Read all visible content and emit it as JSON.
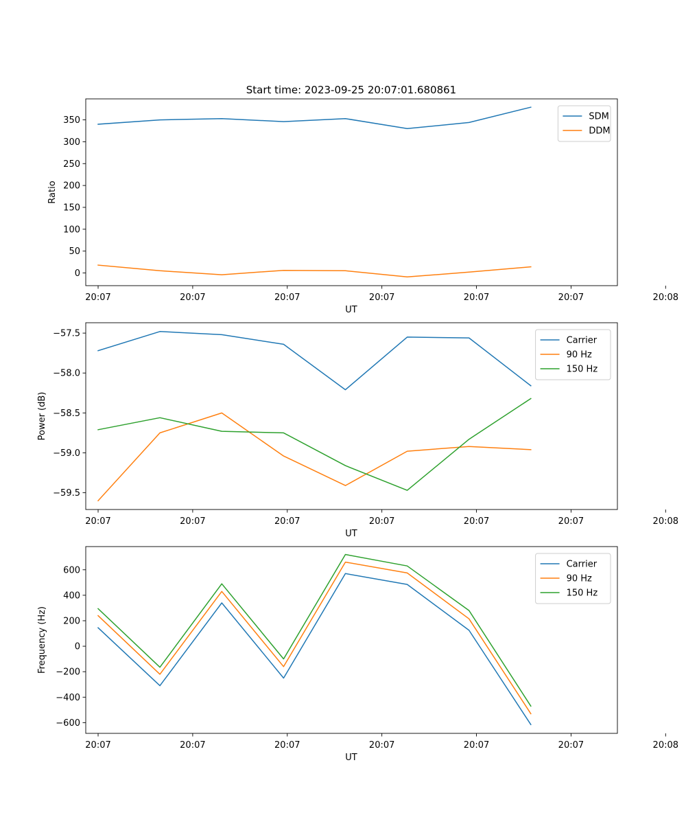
{
  "figure": {
    "title": "Start time: 2023-09-25 20:07:01.680861"
  },
  "colors": {
    "blue": "#1f77b4",
    "orange": "#ff7f0e",
    "green": "#2ca02c",
    "axes": "#000000",
    "legend_border": "#cccccc"
  },
  "chart_data": [
    {
      "type": "line",
      "title": "Start time: 2023-09-25 20:07:01.680861",
      "xlabel": "UT",
      "ylabel": "Ratio",
      "x": [
        1,
        2,
        3,
        4,
        5,
        6,
        7,
        8
      ],
      "xlim": [
        0.8,
        9.4
      ],
      "x_ticks": [
        1,
        2.53,
        4.06,
        5.59,
        7.12,
        8.65,
        10.18
      ],
      "x_tick_labels": [
        "20:07",
        "20:07",
        "20:07",
        "20:07",
        "20:07",
        "20:07",
        "20:08"
      ],
      "ylim": [
        -29,
        398
      ],
      "y_ticks": [
        0,
        50,
        100,
        150,
        200,
        250,
        300,
        350
      ],
      "y_tick_labels": [
        "0",
        "50",
        "100",
        "150",
        "200",
        "250",
        "300",
        "350"
      ],
      "legend_position": "top-right",
      "series": [
        {
          "name": "SDM",
          "color": "#1f77b4",
          "values": [
            340,
            350,
            353,
            346,
            353,
            330,
            344,
            379
          ]
        },
        {
          "name": "DDM",
          "color": "#ff7f0e",
          "values": [
            18,
            5,
            -4,
            6,
            5,
            -9,
            2,
            14
          ]
        }
      ]
    },
    {
      "type": "line",
      "title": "",
      "xlabel": "UT",
      "ylabel": "Power (dB)",
      "x": [
        1,
        2,
        3,
        4,
        5,
        6,
        7,
        8
      ],
      "xlim": [
        0.8,
        9.4
      ],
      "x_ticks": [
        1,
        2.53,
        4.06,
        5.59,
        7.12,
        8.65,
        10.18
      ],
      "x_tick_labels": [
        "20:07",
        "20:07",
        "20:07",
        "20:07",
        "20:07",
        "20:07",
        "20:08"
      ],
      "ylim": [
        -59.71,
        -57.37
      ],
      "y_ticks": [
        -59.5,
        -59.0,
        -58.5,
        -58.0,
        -57.5
      ],
      "y_tick_labels": [
        "−59.5",
        "−59.0",
        "−58.5",
        "−58.0",
        "−57.5"
      ],
      "legend_position": "top-right",
      "series": [
        {
          "name": "Carrier",
          "color": "#1f77b4",
          "values": [
            -57.72,
            -57.48,
            -57.52,
            -57.64,
            -58.21,
            -57.55,
            -57.56,
            -58.16
          ]
        },
        {
          "name": "90 Hz",
          "color": "#ff7f0e",
          "values": [
            -59.6,
            -58.75,
            -58.5,
            -59.04,
            -59.41,
            -58.98,
            -58.92,
            -58.96
          ]
        },
        {
          "name": "150 Hz",
          "color": "#2ca02c",
          "values": [
            -58.71,
            -58.56,
            -58.73,
            -58.75,
            -59.16,
            -59.47,
            -58.83,
            -58.32
          ]
        }
      ]
    },
    {
      "type": "line",
      "title": "",
      "xlabel": "UT",
      "ylabel": "Frequency (Hz)",
      "x": [
        1,
        2,
        3,
        4,
        5,
        6,
        7,
        8
      ],
      "xlim": [
        0.8,
        9.4
      ],
      "x_ticks": [
        1,
        2.53,
        4.06,
        5.59,
        7.12,
        8.65,
        10.18
      ],
      "x_tick_labels": [
        "20:07",
        "20:07",
        "20:07",
        "20:07",
        "20:07",
        "20:07",
        "20:08"
      ],
      "ylim": [
        -684,
        782
      ],
      "y_ticks": [
        -600,
        -400,
        -200,
        0,
        200,
        400,
        600
      ],
      "y_tick_labels": [
        "−600",
        "−400",
        "−200",
        "0",
        "200",
        "400",
        "600"
      ],
      "legend_position": "top-right",
      "series": [
        {
          "name": "Carrier",
          "color": "#1f77b4",
          "values": [
            145,
            -310,
            340,
            -250,
            570,
            485,
            125,
            -615
          ]
        },
        {
          "name": "90 Hz",
          "color": "#ff7f0e",
          "values": [
            240,
            -220,
            430,
            -160,
            660,
            575,
            215,
            -530
          ]
        },
        {
          "name": "150 Hz",
          "color": "#2ca02c",
          "values": [
            295,
            -165,
            490,
            -100,
            720,
            630,
            280,
            -470
          ]
        }
      ]
    }
  ]
}
